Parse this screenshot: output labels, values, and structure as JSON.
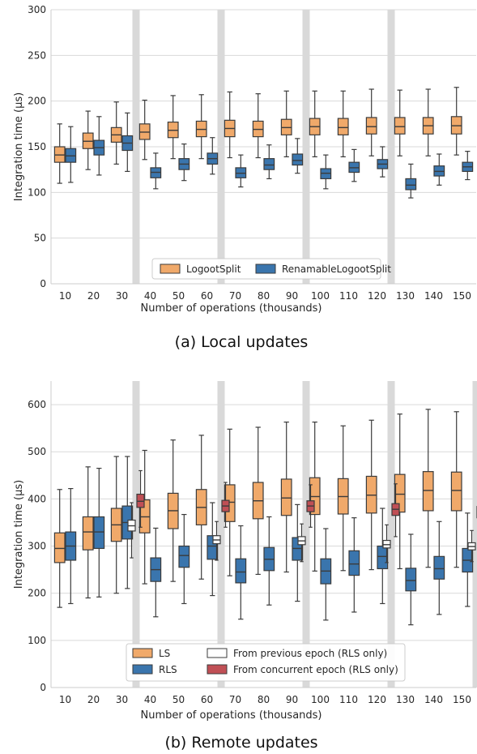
{
  "chart_data": [
    {
      "type": "box",
      "caption": "(a) Local updates",
      "xlabel": "Number of operations (thousands)",
      "ylabel": "Integration time (µs)",
      "ylim": [
        0,
        300
      ],
      "yticks": [
        0,
        50,
        100,
        150,
        200,
        250,
        300
      ],
      "grid": true,
      "legend_position": "bottom-center",
      "categories": [
        "10",
        "20",
        "30",
        "40",
        "50",
        "60",
        "70",
        "80",
        "90",
        "100",
        "110",
        "120",
        "130",
        "140",
        "150"
      ],
      "highlight_after": [
        "30",
        "60",
        "90",
        "120"
      ],
      "series": [
        {
          "name": "LogootSplit",
          "color": "#f0a96a",
          "boxes": [
            {
              "whislo": 110,
              "q1": 133,
              "med": 141,
              "q3": 150,
              "whishi": 175
            },
            {
              "whislo": 125,
              "q1": 148,
              "med": 156,
              "q3": 165,
              "whishi": 189
            },
            {
              "whislo": 131,
              "q1": 155,
              "med": 163,
              "q3": 171,
              "whishi": 199
            },
            {
              "whislo": 136,
              "q1": 158,
              "med": 166,
              "q3": 175,
              "whishi": 201
            },
            {
              "whislo": 137,
              "q1": 160,
              "med": 168,
              "q3": 177,
              "whishi": 206
            },
            {
              "whislo": 137,
              "q1": 161,
              "med": 169,
              "q3": 178,
              "whishi": 207
            },
            {
              "whislo": 138,
              "q1": 161,
              "med": 170,
              "q3": 179,
              "whishi": 210
            },
            {
              "whislo": 138,
              "q1": 161,
              "med": 169,
              "q3": 178,
              "whishi": 208
            },
            {
              "whislo": 139,
              "q1": 163,
              "med": 171,
              "q3": 180,
              "whishi": 211
            },
            {
              "whislo": 139,
              "q1": 163,
              "med": 172,
              "q3": 181,
              "whishi": 211
            },
            {
              "whislo": 139,
              "q1": 163,
              "med": 171,
              "q3": 181,
              "whishi": 211
            },
            {
              "whislo": 140,
              "q1": 164,
              "med": 172,
              "q3": 182,
              "whishi": 213
            },
            {
              "whislo": 140,
              "q1": 164,
              "med": 172,
              "q3": 182,
              "whishi": 212
            },
            {
              "whislo": 140,
              "q1": 164,
              "med": 173,
              "q3": 182,
              "whishi": 213
            },
            {
              "whislo": 141,
              "q1": 164,
              "med": 173,
              "q3": 183,
              "whishi": 215
            }
          ]
        },
        {
          "name": "RenamableLogootSplit",
          "color": "#3a75ad",
          "boxes": [
            {
              "whislo": 111,
              "q1": 133,
              "med": 140,
              "q3": 148,
              "whishi": 172
            },
            {
              "whislo": 119,
              "q1": 141,
              "med": 149,
              "q3": 157,
              "whishi": 183
            },
            {
              "whislo": 123,
              "q1": 146,
              "med": 154,
              "q3": 162,
              "whishi": 187
            },
            {
              "whislo": 104,
              "q1": 116,
              "med": 122,
              "q3": 127,
              "whishi": 143
            },
            {
              "whislo": 113,
              "q1": 125,
              "med": 131,
              "q3": 137,
              "whishi": 153
            },
            {
              "whislo": 120,
              "q1": 131,
              "med": 137,
              "q3": 143,
              "whishi": 160
            },
            {
              "whislo": 106,
              "q1": 116,
              "med": 121,
              "q3": 127,
              "whishi": 141
            },
            {
              "whislo": 115,
              "q1": 125,
              "med": 130,
              "q3": 137,
              "whishi": 152
            },
            {
              "whislo": 121,
              "q1": 130,
              "med": 135,
              "q3": 142,
              "whishi": 159
            },
            {
              "whislo": 104,
              "q1": 115,
              "med": 121,
              "q3": 126,
              "whishi": 141
            },
            {
              "whislo": 112,
              "q1": 122,
              "med": 127,
              "q3": 133,
              "whishi": 147
            },
            {
              "whislo": 117,
              "q1": 126,
              "med": 131,
              "q3": 136,
              "whishi": 150
            },
            {
              "whislo": 94,
              "q1": 103,
              "med": 108,
              "q3": 115,
              "whishi": 131
            },
            {
              "whislo": 108,
              "q1": 118,
              "med": 123,
              "q3": 129,
              "whishi": 142
            },
            {
              "whislo": 114,
              "q1": 123,
              "med": 128,
              "q3": 133,
              "whishi": 145
            }
          ]
        }
      ]
    },
    {
      "type": "box",
      "caption": "(b) Remote updates",
      "xlabel": "Number of operations (thousands)",
      "ylabel": "Integration time (µs)",
      "ylim": [
        0,
        650
      ],
      "yticks": [
        0,
        100,
        200,
        300,
        400,
        500,
        600
      ],
      "grid": true,
      "legend_position": "bottom-center",
      "categories": [
        "10",
        "20",
        "30",
        "40",
        "50",
        "60",
        "70",
        "80",
        "90",
        "100",
        "110",
        "120",
        "130",
        "140",
        "150"
      ],
      "highlight_after": [
        "30",
        "60",
        "90",
        "120",
        "150"
      ],
      "series": [
        {
          "name": "LS",
          "color": "#f0a96a",
          "boxes": [
            {
              "whislo": 170,
              "q1": 265,
              "med": 295,
              "q3": 328,
              "whishi": 420
            },
            {
              "whislo": 190,
              "q1": 292,
              "med": 330,
              "q3": 362,
              "whishi": 468
            },
            {
              "whislo": 200,
              "q1": 310,
              "med": 345,
              "q3": 380,
              "whishi": 490
            },
            {
              "whislo": 220,
              "q1": 328,
              "med": 362,
              "q3": 398,
              "whishi": 503
            },
            {
              "whislo": 225,
              "q1": 337,
              "med": 375,
              "q3": 412,
              "whishi": 525
            },
            {
              "whislo": 230,
              "q1": 345,
              "med": 382,
              "q3": 420,
              "whishi": 535
            },
            {
              "whislo": 237,
              "q1": 352,
              "med": 393,
              "q3": 430,
              "whishi": 548
            },
            {
              "whislo": 240,
              "q1": 358,
              "med": 396,
              "q3": 435,
              "whishi": 552
            },
            {
              "whislo": 245,
              "q1": 365,
              "med": 402,
              "q3": 442,
              "whishi": 563
            },
            {
              "whislo": 247,
              "q1": 367,
              "med": 405,
              "q3": 445,
              "whishi": 563
            },
            {
              "whislo": 248,
              "q1": 368,
              "med": 405,
              "q3": 443,
              "whishi": 555
            },
            {
              "whislo": 250,
              "q1": 370,
              "med": 408,
              "q3": 448,
              "whishi": 567
            },
            {
              "whislo": 252,
              "q1": 372,
              "med": 410,
              "q3": 452,
              "whishi": 580
            },
            {
              "whislo": 255,
              "q1": 375,
              "med": 418,
              "q3": 458,
              "whishi": 590
            },
            {
              "whislo": 255,
              "q1": 375,
              "med": 418,
              "q3": 457,
              "whishi": 585
            }
          ]
        },
        {
          "name": "RLS",
          "color": "#3a75ad",
          "boxes": [
            {
              "whislo": 178,
              "q1": 270,
              "med": 300,
              "q3": 330,
              "whishi": 422
            },
            {
              "whislo": 192,
              "q1": 295,
              "med": 330,
              "q3": 362,
              "whishi": 465
            },
            {
              "whislo": 210,
              "q1": 315,
              "med": 350,
              "q3": 385,
              "whishi": 490
            },
            {
              "whislo": 150,
              "q1": 225,
              "med": 250,
              "q3": 275,
              "whishi": 338
            },
            {
              "whislo": 178,
              "q1": 255,
              "med": 280,
              "q3": 300,
              "whishi": 367
            },
            {
              "whislo": 195,
              "q1": 272,
              "med": 300,
              "q3": 322,
              "whishi": 392
            },
            {
              "whislo": 145,
              "q1": 222,
              "med": 245,
              "q3": 273,
              "whishi": 343
            },
            {
              "whislo": 175,
              "q1": 248,
              "med": 272,
              "q3": 297,
              "whishi": 362
            },
            {
              "whislo": 183,
              "q1": 270,
              "med": 295,
              "q3": 318,
              "whishi": 388
            },
            {
              "whislo": 143,
              "q1": 220,
              "med": 247,
              "q3": 273,
              "whishi": 337
            },
            {
              "whislo": 160,
              "q1": 238,
              "med": 262,
              "q3": 290,
              "whishi": 360
            },
            {
              "whislo": 178,
              "q1": 252,
              "med": 278,
              "q3": 300,
              "whishi": 380
            },
            {
              "whislo": 133,
              "q1": 205,
              "med": 227,
              "q3": 253,
              "whishi": 325
            },
            {
              "whislo": 155,
              "q1": 230,
              "med": 252,
              "q3": 278,
              "whishi": 352
            },
            {
              "whislo": 172,
              "q1": 245,
              "med": 270,
              "q3": 295,
              "whishi": 370
            }
          ]
        },
        {
          "name": "From previous epoch (RLS only)",
          "color": "#ffffff",
          "positions": [
            "30",
            "60",
            "90",
            "120",
            "150"
          ],
          "boxes": [
            {
              "whislo": 275,
              "q1": 332,
              "med": 343,
              "q3": 355,
              "whishi": 392
            },
            {
              "whislo": 270,
              "q1": 305,
              "med": 313,
              "q3": 322,
              "whishi": 352
            },
            {
              "whislo": 267,
              "q1": 303,
              "med": 311,
              "q3": 320,
              "whishi": 347
            },
            {
              "whislo": 265,
              "q1": 296,
              "med": 303,
              "q3": 312,
              "whishi": 345
            },
            {
              "whislo": 267,
              "q1": 292,
              "med": 299,
              "q3": 307,
              "whishi": 333
            }
          ]
        },
        {
          "name": "From concurrent epoch (RLS only)",
          "color": "#c04f55",
          "positions": [
            "30",
            "60",
            "90",
            "120",
            "150"
          ],
          "boxes": [
            {
              "whislo": 340,
              "q1": 382,
              "med": 395,
              "q3": 410,
              "whishi": 460
            },
            {
              "whislo": 340,
              "q1": 373,
              "med": 385,
              "q3": 397,
              "whishi": 435
            },
            {
              "whislo": 340,
              "q1": 373,
              "med": 385,
              "q3": 396,
              "whishi": 430
            },
            {
              "whislo": 320,
              "q1": 365,
              "med": 378,
              "q3": 390,
              "whishi": 432
            },
            {
              "whislo": 325,
              "q1": 360,
              "med": 372,
              "q3": 384,
              "whishi": 420
            }
          ]
        }
      ]
    }
  ]
}
